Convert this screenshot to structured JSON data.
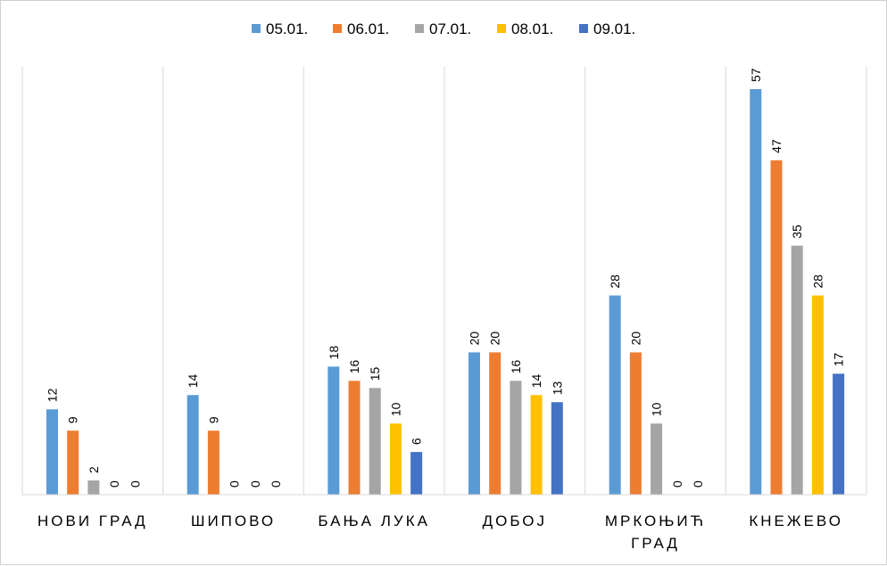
{
  "chart_data": {
    "type": "bar",
    "title": "",
    "xlabel": "",
    "ylabel": "",
    "ylim": [
      0,
      57
    ],
    "grid": "vertical-separators",
    "legend_position": "top",
    "categories": [
      "НОВИ ГРАД",
      "ШИПОВО",
      "БАЊА ЛУКА",
      "ДОБОЈ",
      "МРКОЊИЋ ГРАД",
      "КНЕЖЕВО"
    ],
    "category_lines": [
      [
        "НОВИ ГРАД"
      ],
      [
        "ШИПОВО"
      ],
      [
        "БАЊА ЛУКА"
      ],
      [
        "ДОБОЈ"
      ],
      [
        "МРКОЊИЋ",
        "ГРАД"
      ],
      [
        "КНЕЖЕВО"
      ]
    ],
    "series": [
      {
        "name": "05.01.",
        "color": "#5B9BD5",
        "values": [
          12,
          14,
          18,
          20,
          28,
          57
        ]
      },
      {
        "name": "06.01.",
        "color": "#ED7D31",
        "values": [
          9,
          9,
          16,
          20,
          20,
          47
        ]
      },
      {
        "name": "07.01.",
        "color": "#A5A5A5",
        "values": [
          2,
          0,
          15,
          16,
          10,
          35
        ]
      },
      {
        "name": "08.01.",
        "color": "#FFC000",
        "values": [
          0,
          0,
          10,
          14,
          0,
          28
        ]
      },
      {
        "name": "09.01.",
        "color": "#4472C4",
        "values": [
          0,
          0,
          6,
          13,
          0,
          17
        ]
      }
    ]
  }
}
